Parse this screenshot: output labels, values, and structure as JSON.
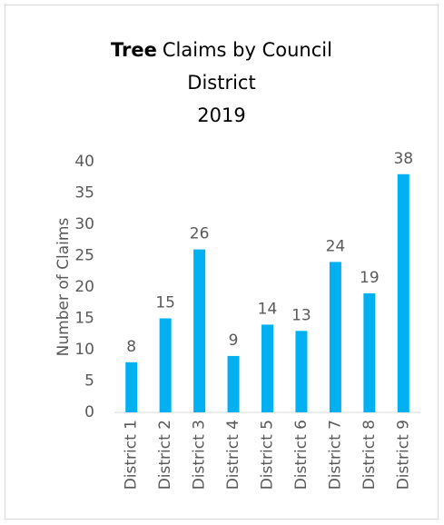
{
  "chart_data": {
    "type": "bar",
    "title_emphasis": "Tree",
    "title_lines": [
      "Claims by Council",
      "District"
    ],
    "subtitle": "2019",
    "y_label": "Number of Claims",
    "categories": [
      "District 1",
      "District 2",
      "District 3",
      "District 4",
      "District 5",
      "District 6",
      "District 7",
      "District 8",
      "District 9"
    ],
    "values": [
      8,
      15,
      26,
      9,
      14,
      13,
      24,
      19,
      38
    ],
    "color": "#00b0f0",
    "ylim": [
      0,
      40
    ],
    "yticks": [
      0,
      5,
      10,
      15,
      20,
      25,
      30,
      35,
      40
    ],
    "grid": false
  }
}
